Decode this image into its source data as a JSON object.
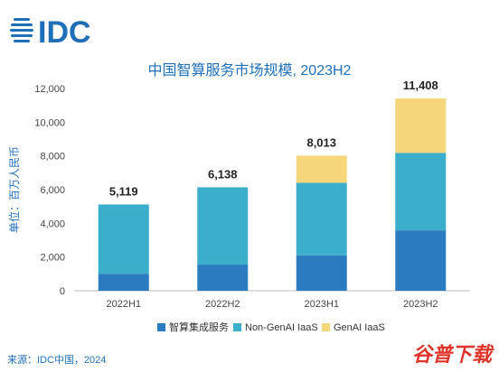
{
  "brand": {
    "logo_text": "IDC",
    "logo_color": "#1f6fb8"
  },
  "chart_data": {
    "type": "bar",
    "stacked": true,
    "title": "中国智算服务市场规模, 2023H2",
    "ylabel": "单位：百万人民币",
    "xlabel": "",
    "categories": [
      "2022H1",
      "2022H2",
      "2023H1",
      "2023H2"
    ],
    "ylim": [
      0,
      12000
    ],
    "yticks": [
      0,
      2000,
      4000,
      6000,
      8000,
      10000,
      12000
    ],
    "ytick_labels": [
      "0",
      "2,000",
      "4,000",
      "6,000",
      "8,000",
      "10,000",
      "12,000"
    ],
    "series": [
      {
        "name": "智算集成服务",
        "values": [
          1000,
          1550,
          2100,
          3580
        ],
        "color": "#2a7bbf"
      },
      {
        "name": "Non-GenAI IaaS",
        "values": [
          4119,
          4588,
          4300,
          4600
        ],
        "color": "#3aaecb"
      },
      {
        "name": "GenAI IaaS",
        "values": [
          0,
          0,
          1613,
          3228
        ],
        "color": "#f6d67a"
      }
    ],
    "totals": [
      5119,
      6138,
      8013,
      11408
    ],
    "total_labels": [
      "5,119",
      "6,138",
      "8,013",
      "11,408"
    ],
    "grid": false,
    "legend_position": "bottom"
  },
  "footer": {
    "source": "来源：IDC中国，2024"
  },
  "watermark": {
    "text": "谷普下载",
    "color": "#e0342a"
  }
}
